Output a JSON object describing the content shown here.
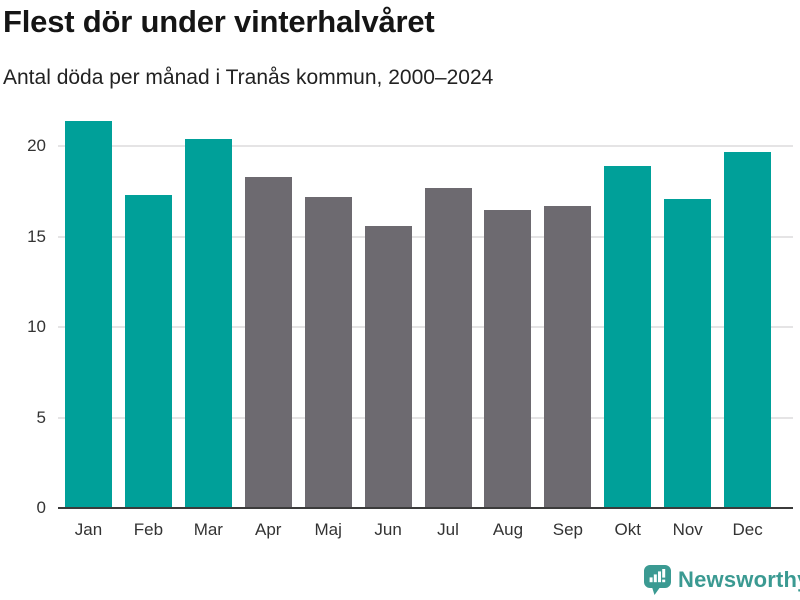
{
  "page": {
    "title": "Flest dör under vinterhalvåret",
    "subtitle": "Antal döda per månad i Tranås kommun, 2000–2024"
  },
  "footer": {
    "brand_name": "Newsworthy",
    "logo_icon": "speech-bubble-bar-chart-icon",
    "brand_color": "#3b9a92"
  },
  "colors": {
    "winter_bar": "#00a099",
    "summer_bar": "#6d6a70",
    "gridline": "#e5e4e5",
    "axis": "#3b3b3b",
    "title_text": "#151515",
    "tick_text": "#333333"
  },
  "chart_data": {
    "type": "bar",
    "title": "Flest dör under vinterhalvåret",
    "subtitle": "Antal döda per månad i Tranås kommun, 2000–2024",
    "categories": [
      "Jan",
      "Feb",
      "Mar",
      "Apr",
      "Maj",
      "Jun",
      "Jul",
      "Aug",
      "Sep",
      "Okt",
      "Nov",
      "Dec"
    ],
    "values": [
      21.4,
      17.3,
      20.4,
      18.3,
      17.2,
      15.6,
      17.7,
      16.5,
      16.7,
      18.9,
      17.1,
      19.7
    ],
    "bar_groups": [
      "winter",
      "winter",
      "winter",
      "summer",
      "summer",
      "summer",
      "summer",
      "summer",
      "summer",
      "winter",
      "winter",
      "winter"
    ],
    "series_colors": {
      "winter": "#00a099",
      "summer": "#6d6a70"
    },
    "xlabel": "",
    "ylabel": "",
    "yticks": [
      0,
      5,
      10,
      15,
      20
    ],
    "ylim": [
      0,
      22
    ],
    "grid": true,
    "legend_position": "none"
  }
}
